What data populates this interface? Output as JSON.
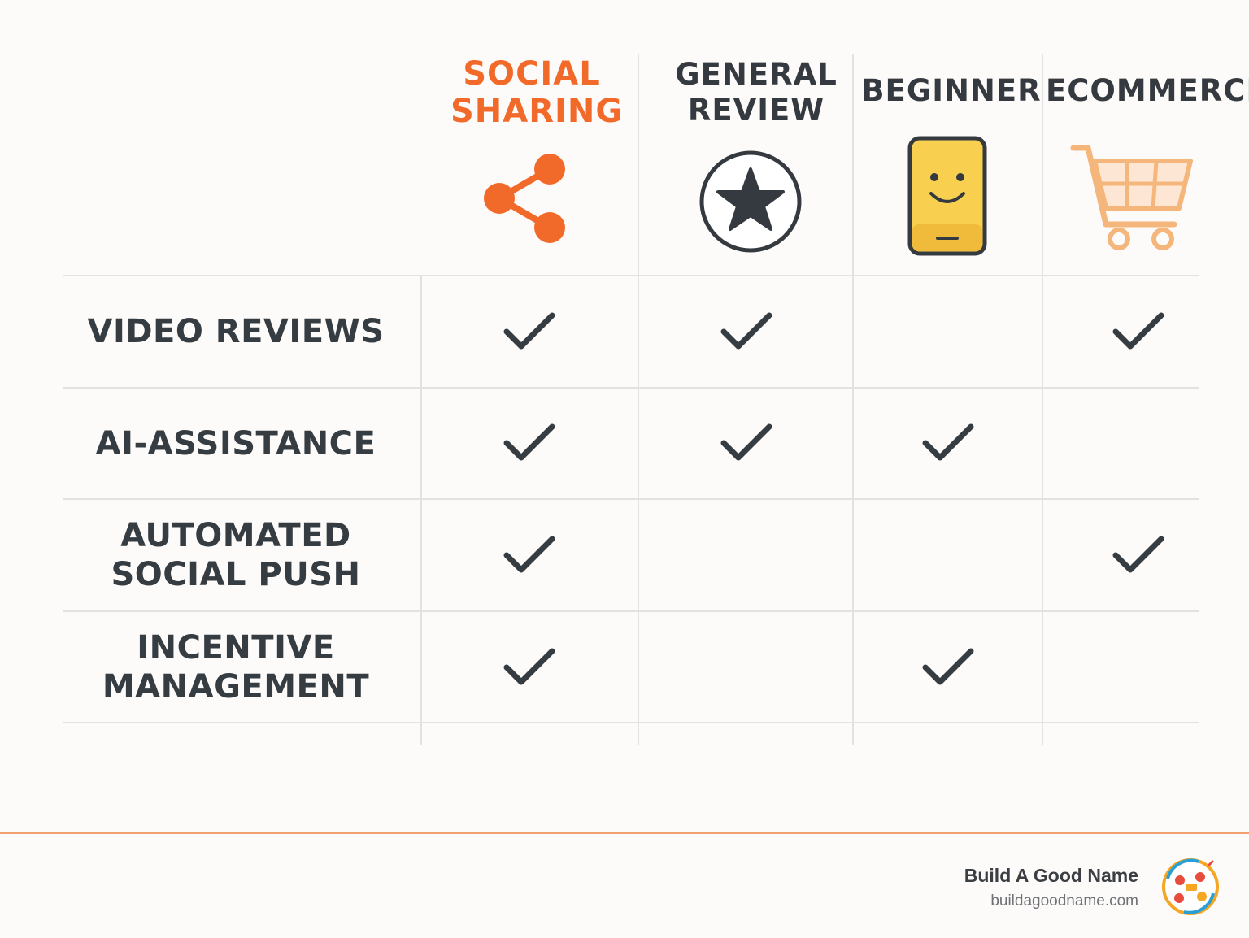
{
  "columns": [
    {
      "label": "SOCIAL SHARING",
      "icon": "share-icon",
      "color": "#f26a2a"
    },
    {
      "label": "GENERAL REVIEW",
      "icon": "star-circle-icon",
      "color": "#343a3f"
    },
    {
      "label": "BEGINNER",
      "icon": "smiley-phone-icon",
      "color": "#343a3f"
    },
    {
      "label": "ECOMMERCE",
      "icon": "shopping-cart-icon",
      "color": "#343a3f"
    }
  ],
  "rows": [
    {
      "label": "VIDEO REVIEWS",
      "checks": [
        true,
        true,
        false,
        true
      ]
    },
    {
      "label": "AI-ASSISTANCE",
      "checks": [
        true,
        true,
        true,
        false
      ]
    },
    {
      "label": "AUTOMATED SOCIAL PUSH",
      "checks": [
        true,
        false,
        false,
        true
      ]
    },
    {
      "label": "INCENTIVE MANAGEMENT",
      "checks": [
        true,
        false,
        true,
        false
      ]
    }
  ],
  "footer": {
    "brand_name": "Build A Good Name",
    "brand_url": "buildagoodname.com"
  },
  "colors": {
    "accent": "#f26a2a",
    "dark": "#343a3f",
    "phone": "#f8cf4e",
    "cart": "#f5b67c"
  }
}
